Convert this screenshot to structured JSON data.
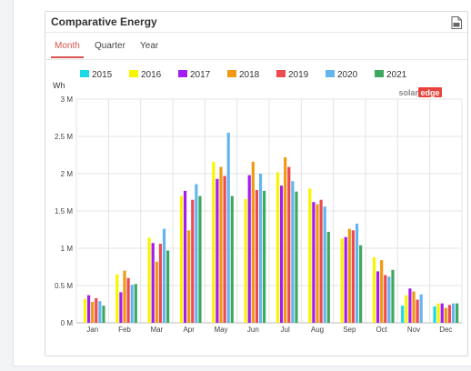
{
  "card": {
    "title": "Comparative Energy",
    "tabs": [
      {
        "label": "Month",
        "active": true
      },
      {
        "label": "Quarter",
        "active": false
      },
      {
        "label": "Year",
        "active": false
      }
    ]
  },
  "watermark": {
    "part1": "solar",
    "part2": "edge"
  },
  "colors": {
    "accent": "#d9534f",
    "series": {
      "2015": "#1ad9e8",
      "2016": "#f8f500",
      "2017": "#a51cf0",
      "2018": "#ef9a12",
      "2019": "#ee4a50",
      "2020": "#63b5f0",
      "2021": "#3ea85f"
    }
  },
  "chart_data": {
    "type": "bar",
    "title": "Comparative Energy",
    "ylabel": "Wh",
    "ylim": [
      0,
      3000000
    ],
    "yticks": [
      {
        "value": 0,
        "label": "0 M"
      },
      {
        "value": 500000,
        "label": "0.5 M"
      },
      {
        "value": 1000000,
        "label": "1 M"
      },
      {
        "value": 1500000,
        "label": "1.5 M"
      },
      {
        "value": 2000000,
        "label": "2 M"
      },
      {
        "value": 2500000,
        "label": "2.5 M"
      },
      {
        "value": 3000000,
        "label": "3 M"
      }
    ],
    "categories": [
      "Jan",
      "Feb",
      "Mar",
      "Apr",
      "May",
      "Jun",
      "Jul",
      "Aug",
      "Sep",
      "Oct",
      "Nov",
      "Dec"
    ],
    "legend_position": "top",
    "grid": true,
    "series": [
      {
        "name": "2015",
        "values": [
          null,
          null,
          null,
          null,
          null,
          null,
          null,
          null,
          null,
          null,
          230000,
          220000
        ]
      },
      {
        "name": "2016",
        "values": [
          320000,
          650000,
          1140000,
          1700000,
          2160000,
          1660000,
          2020000,
          1800000,
          1130000,
          880000,
          370000,
          260000
        ]
      },
      {
        "name": "2017",
        "values": [
          370000,
          410000,
          1070000,
          1770000,
          1930000,
          1980000,
          1840000,
          1620000,
          1150000,
          690000,
          460000,
          260000
        ]
      },
      {
        "name": "2018",
        "values": [
          280000,
          700000,
          820000,
          1240000,
          2090000,
          2160000,
          2220000,
          1590000,
          1260000,
          840000,
          420000,
          200000
        ]
      },
      {
        "name": "2019",
        "values": [
          330000,
          600000,
          1060000,
          1650000,
          1970000,
          1780000,
          2090000,
          1650000,
          1240000,
          640000,
          310000,
          240000
        ]
      },
      {
        "name": "2020",
        "values": [
          290000,
          510000,
          1260000,
          1860000,
          2550000,
          2000000,
          1900000,
          1560000,
          1330000,
          620000,
          380000,
          260000
        ]
      },
      {
        "name": "2021",
        "values": [
          230000,
          520000,
          970000,
          1700000,
          1700000,
          1770000,
          1760000,
          1220000,
          1040000,
          710000,
          null,
          260000
        ]
      }
    ]
  }
}
